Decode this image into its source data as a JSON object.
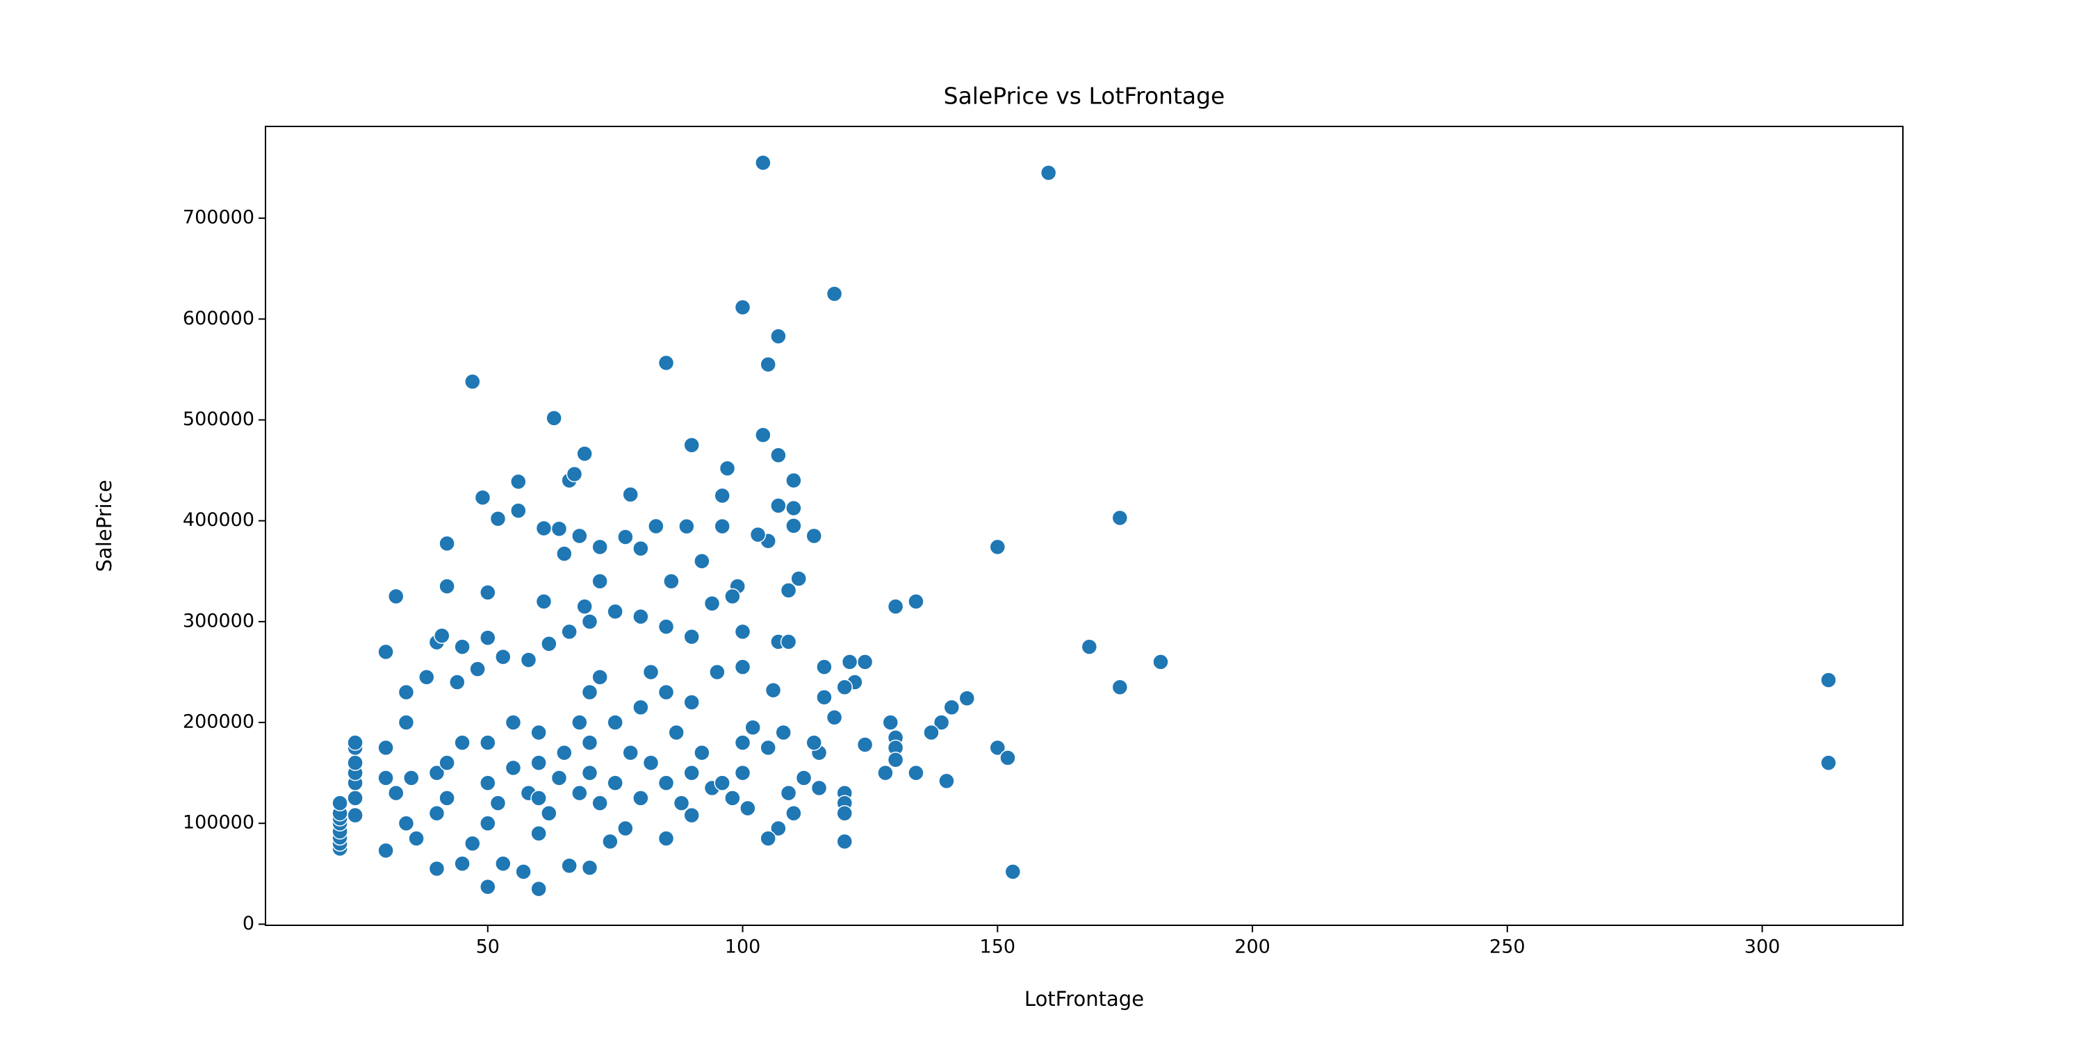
{
  "chart_data": {
    "type": "scatter",
    "title": "SalePrice vs LotFrontage",
    "x_label": "LotFrontage",
    "y_label": "SalePrice",
    "color": "#1f77b4",
    "xlim": [
      6.4,
      327.6
    ],
    "ylim": [
      -1100,
      791000
    ],
    "xticks": [
      50,
      100,
      150,
      200,
      250,
      300
    ],
    "yticks": [
      0,
      100000,
      200000,
      300000,
      400000,
      500000,
      600000,
      700000
    ],
    "x": [
      104,
      160,
      118,
      100,
      107,
      47,
      85,
      105,
      63,
      104,
      69,
      107,
      90,
      97,
      66,
      67,
      56,
      110,
      49,
      78,
      96,
      174,
      52,
      56,
      61,
      64,
      83,
      89,
      96,
      110,
      107,
      110,
      114,
      150,
      105,
      103,
      42,
      65,
      72,
      77,
      68,
      80,
      92,
      32,
      42,
      50,
      61,
      69,
      72,
      86,
      99,
      109,
      111,
      130,
      134,
      98,
      94,
      30,
      40,
      41,
      45,
      50,
      48,
      53,
      58,
      62,
      66,
      70,
      75,
      80,
      85,
      90,
      100,
      107,
      109,
      168,
      182,
      174,
      313,
      313,
      153,
      150,
      152,
      144,
      141,
      139,
      137,
      134,
      140,
      128,
      130,
      129,
      130,
      130,
      124,
      124,
      121,
      122,
      120,
      116,
      116,
      118,
      115,
      114,
      112,
      115,
      120,
      120,
      120,
      120,
      110,
      109,
      107,
      105,
      108,
      106,
      100,
      102,
      105,
      21,
      21,
      21,
      21,
      21,
      21,
      21,
      21,
      24,
      24,
      24,
      24,
      24,
      24,
      24,
      30,
      30,
      30,
      32,
      34,
      35,
      36,
      34,
      34,
      38,
      40,
      40,
      40,
      42,
      42,
      44,
      45,
      45,
      47,
      50,
      50,
      50,
      50,
      52,
      53,
      55,
      55,
      57,
      58,
      60,
      60,
      60,
      60,
      60,
      62,
      64,
      65,
      66,
      68,
      68,
      70,
      70,
      70,
      70,
      72,
      72,
      74,
      75,
      75,
      77,
      78,
      80,
      80,
      82,
      82,
      85,
      85,
      85,
      87,
      88,
      90,
      90,
      90,
      92,
      94,
      95,
      96,
      98,
      100,
      100,
      101
    ],
    "values": [
      755000,
      745000,
      625000,
      611657,
      582933,
      538000,
      556581,
      555000,
      501837,
      485000,
      466500,
      465000,
      475000,
      451950,
      440000,
      446261,
      438780,
      440000,
      423000,
      426000,
      424870,
      402861,
      402000,
      410000,
      392500,
      392000,
      394617,
      394432,
      394500,
      412500,
      415000,
      395000,
      385000,
      374000,
      380000,
      386250,
      377500,
      367294,
      374000,
      383970,
      385000,
      372500,
      360000,
      325000,
      335000,
      328900,
      320000,
      315000,
      340000,
      340000,
      335000,
      331000,
      342643,
      315000,
      320000,
      325000,
      318000,
      270000,
      279500,
      286000,
      275000,
      284000,
      253000,
      265000,
      262000,
      278000,
      290000,
      300000,
      310000,
      305000,
      295000,
      285000,
      290000,
      280000,
      280000,
      275000,
      260000,
      235000,
      242000,
      160000,
      52000,
      175000,
      165000,
      224000,
      215000,
      200000,
      190000,
      150000,
      142000,
      150000,
      185000,
      200000,
      175000,
      163000,
      178000,
      260000,
      260000,
      240000,
      235000,
      225000,
      255000,
      205000,
      170000,
      180000,
      145000,
      135000,
      130000,
      120000,
      110000,
      82000,
      110000,
      130000,
      95000,
      85000,
      190000,
      232000,
      255000,
      195000,
      175000,
      75000,
      80000,
      86000,
      92000,
      100000,
      105000,
      110000,
      120000,
      108000,
      125000,
      140000,
      150000,
      160000,
      175000,
      180000,
      73000,
      145000,
      175000,
      130000,
      100000,
      145000,
      85000,
      200000,
      230000,
      245000,
      55000,
      110000,
      150000,
      160000,
      125000,
      240000,
      60000,
      180000,
      80000,
      37000,
      100000,
      140000,
      180000,
      120000,
      60000,
      155000,
      200000,
      52000,
      130000,
      35000,
      90000,
      125000,
      160000,
      190000,
      110000,
      145000,
      170000,
      58000,
      130000,
      200000,
      56000,
      150000,
      180000,
      230000,
      120000,
      245000,
      82000,
      140000,
      200000,
      95000,
      170000,
      125000,
      215000,
      160000,
      250000,
      85000,
      140000,
      230000,
      190000,
      120000,
      108000,
      150000,
      220000,
      170000,
      135000,
      250000,
      140000,
      125000,
      150000,
      180000,
      115000
    ]
  }
}
